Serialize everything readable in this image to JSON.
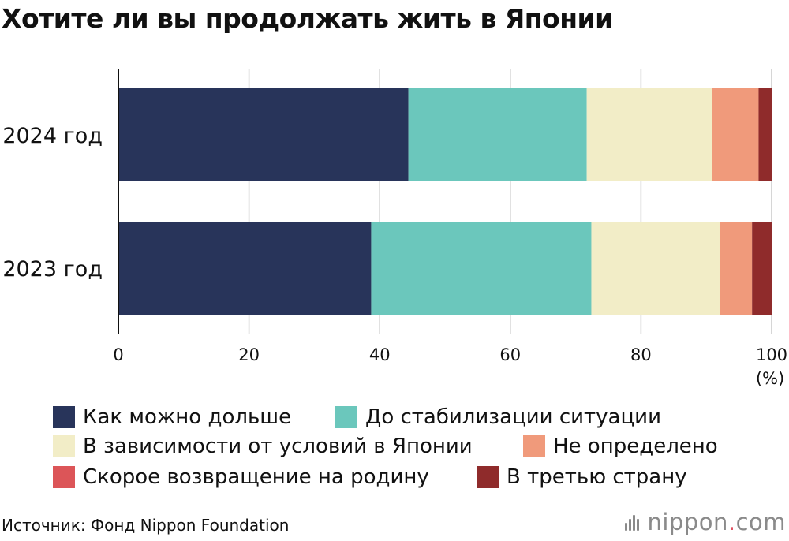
{
  "title": "Хотите ли вы продолжать жить в Японии",
  "source": "Источник: Фонд Nippon Foundation",
  "logo": {
    "name": "nippon",
    "dot": ".",
    "tld": "com"
  },
  "colors": {
    "navy": "#28345a",
    "teal": "#6bc7bc",
    "cream": "#f2edc7",
    "salmon": "#f09a7b",
    "red": "#dc5558",
    "darkred": "#8f2b2b"
  },
  "chart_data": {
    "type": "bar",
    "orientation": "horizontal",
    "stacked": true,
    "categories": [
      "2024 год",
      "2023 год"
    ],
    "xlim": [
      0,
      100
    ],
    "xticks": [
      0,
      20,
      40,
      60,
      80,
      100
    ],
    "unit": "(%)",
    "grid": true,
    "legend_position": "bottom",
    "series": [
      {
        "name": "Как можно дольше",
        "color": "#28345a",
        "values": [
          44.4,
          38.7
        ]
      },
      {
        "name": "До стабилизации ситуации",
        "color": "#6bc7bc",
        "values": [
          27.3,
          33.7
        ]
      },
      {
        "name": "В зависимости от условий в Японии",
        "color": "#f2edc7",
        "values": [
          19.2,
          19.7
        ]
      },
      {
        "name": "Не определено",
        "color": "#f09a7b",
        "values": [
          7.1,
          4.9
        ]
      },
      {
        "name": "Скорое возвращение на родину",
        "color": "#dc5558",
        "values": [
          0,
          0
        ]
      },
      {
        "name": "В третью страну",
        "color": "#8f2b2b",
        "values": [
          2.0,
          3.0
        ]
      }
    ]
  }
}
